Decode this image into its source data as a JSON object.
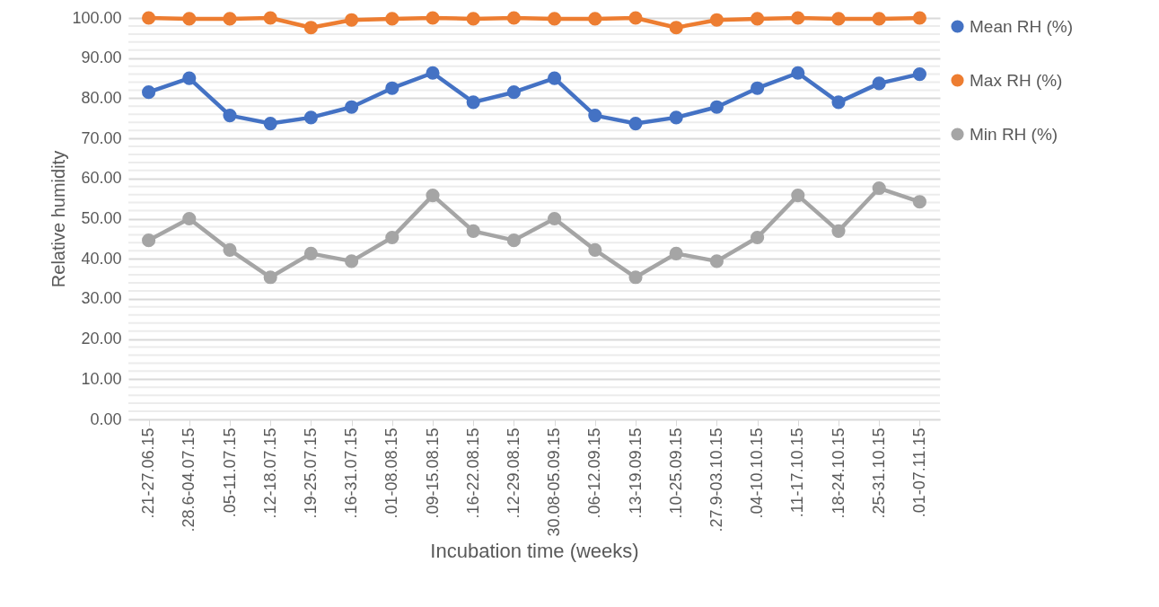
{
  "chart_data": {
    "type": "line",
    "xlabel": "Incubation time (weeks)",
    "ylabel": "Relative humidity",
    "categories": [
      ".21-27.06.15",
      ".28.6-04.07.15",
      ".05-11.07.15",
      ".12-18.07.15",
      ".19-25.07.15",
      ".16-31.07.15",
      ".01-08.08.15",
      ".09-15.08.15",
      ".16-22.08.15",
      ".12-29.08.15",
      "30.08-05.09.15",
      ".06-12.09.15",
      ".13-19.09.15",
      ".10-25.09.15",
      ".27.9-03.10.15",
      ".04-10.10.15",
      ".11-17.10.15",
      ".18-24.10.15",
      ".25-31.10.15",
      ".01-07.11.15"
    ],
    "series": [
      {
        "name": "Mean RH (%)",
        "color": "#4472c4",
        "values": [
          81.5,
          85,
          75.7,
          73.7,
          75.2,
          77.8,
          82.5,
          86.3,
          79,
          81.5,
          85,
          75.7,
          73.7,
          75.2,
          77.8,
          82.5,
          86.3,
          79,
          83.7,
          86
        ]
      },
      {
        "name": "Max RH (%)",
        "color": "#ed7d31",
        "values": [
          100,
          99.8,
          99.8,
          100,
          97.6,
          99.5,
          99.8,
          100,
          99.8,
          100,
          99.8,
          99.8,
          100,
          97.6,
          99.5,
          99.8,
          100,
          99.8,
          99.8,
          100
        ]
      },
      {
        "name": "Min RH (%)",
        "color": "#a5a5a5",
        "values": [
          44.6,
          50,
          42.2,
          35.4,
          41.3,
          39.4,
          45.3,
          55.8,
          46.9,
          44.6,
          50,
          42.2,
          35.4,
          41.3,
          39.4,
          45.3,
          55.8,
          46.9,
          57.6,
          54.2
        ]
      }
    ],
    "ylim": [
      0,
      100
    ],
    "yticks": [
      {
        "value": 0,
        "label": "0.00"
      },
      {
        "value": 2,
        "label": null
      },
      {
        "value": 4,
        "label": null
      },
      {
        "value": 6,
        "label": null
      },
      {
        "value": 8,
        "label": null
      },
      {
        "value": 10,
        "label": "10.00"
      },
      {
        "value": 12,
        "label": null
      },
      {
        "value": 14,
        "label": null
      },
      {
        "value": 16,
        "label": null
      },
      {
        "value": 18,
        "label": null
      },
      {
        "value": 20,
        "label": "20.00"
      },
      {
        "value": 22,
        "label": null
      },
      {
        "value": 24,
        "label": null
      },
      {
        "value": 26,
        "label": null
      },
      {
        "value": 28,
        "label": null
      },
      {
        "value": 30,
        "label": "30.00"
      },
      {
        "value": 32,
        "label": null
      },
      {
        "value": 34,
        "label": null
      },
      {
        "value": 36,
        "label": null
      },
      {
        "value": 38,
        "label": null
      },
      {
        "value": 40,
        "label": "40.00"
      },
      {
        "value": 42,
        "label": null
      },
      {
        "value": 44,
        "label": null
      },
      {
        "value": 46,
        "label": null
      },
      {
        "value": 48,
        "label": null
      },
      {
        "value": 50,
        "label": "50.00"
      },
      {
        "value": 52,
        "label": null
      },
      {
        "value": 54,
        "label": null
      },
      {
        "value": 56,
        "label": null
      },
      {
        "value": 58,
        "label": null
      },
      {
        "value": 60,
        "label": "60.00"
      },
      {
        "value": 62,
        "label": null
      },
      {
        "value": 64,
        "label": null
      },
      {
        "value": 66,
        "label": null
      },
      {
        "value": 68,
        "label": null
      },
      {
        "value": 70,
        "label": "70.00"
      },
      {
        "value": 72,
        "label": null
      },
      {
        "value": 74,
        "label": null
      },
      {
        "value": 76,
        "label": null
      },
      {
        "value": 78,
        "label": null
      },
      {
        "value": 80,
        "label": "80.00"
      },
      {
        "value": 82,
        "label": null
      },
      {
        "value": 84,
        "label": null
      },
      {
        "value": 86,
        "label": null
      },
      {
        "value": 88,
        "label": null
      },
      {
        "value": 90,
        "label": "90.00"
      },
      {
        "value": 92,
        "label": null
      },
      {
        "value": 94,
        "label": null
      },
      {
        "value": 96,
        "label": null
      },
      {
        "value": 98,
        "label": null
      },
      {
        "value": 100,
        "label": "100.00"
      }
    ],
    "grid": "y",
    "legend": "right",
    "marker": "circle",
    "line_style": "solid"
  }
}
